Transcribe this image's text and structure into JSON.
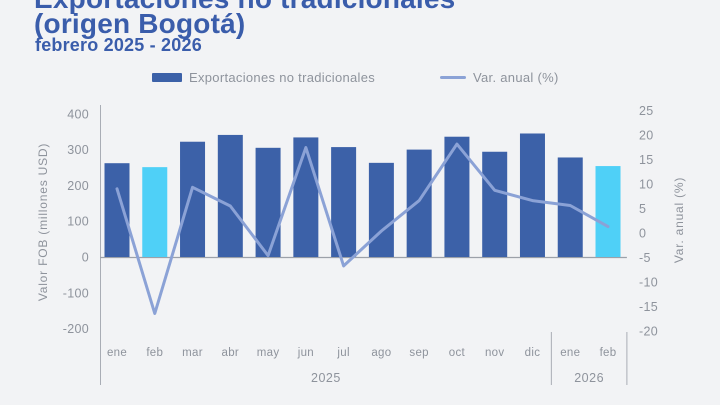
{
  "header": {
    "title_line1": "Exportaciones no tradicionales",
    "title_line2": "(origen Bogotá)",
    "subtitle": "febrero 2025 - 2026"
  },
  "legend": {
    "bars_label": "Exportaciones no tradicionales",
    "line_label": "Var. anual (%)"
  },
  "chart_data": {
    "type": "bar+line",
    "title": "Exportaciones no tradicionales (origen Bogotá)",
    "categories": [
      "ene",
      "feb",
      "mar",
      "abr",
      "may",
      "jun",
      "jul",
      "ago",
      "sep",
      "oct",
      "nov",
      "dic",
      "ene",
      "feb"
    ],
    "year_groups": [
      {
        "label": "2025",
        "months": 12
      },
      {
        "label": "2026",
        "months": 2
      }
    ],
    "series": [
      {
        "name": "Exportaciones no tradicionales",
        "type": "bar",
        "axis": "left",
        "values": [
          262,
          251,
          322,
          341,
          305,
          334,
          307,
          263,
          300,
          336,
          294,
          345,
          278,
          254
        ],
        "highlight_indices": [
          1,
          13
        ]
      },
      {
        "name": "Var. anual (%)",
        "type": "line",
        "axis": "right",
        "values": [
          9,
          -16.4,
          9.3,
          5.5,
          -4.6,
          17.4,
          -6.7,
          0.4,
          6.6,
          18.1,
          8.7,
          6.6,
          5.6,
          1.3
        ]
      }
    ],
    "left_axis": {
      "label": "Valor FOB (millones USD)",
      "ticks": [
        400,
        300,
        200,
        100,
        0,
        -100,
        -200
      ],
      "range": [
        -200,
        400
      ]
    },
    "right_axis": {
      "label": "Var. anual (%)",
      "ticks": [
        25,
        20,
        15,
        10,
        5,
        0,
        -5,
        -10,
        -15,
        -20
      ],
      "range": [
        -20,
        25
      ]
    },
    "grid": "off",
    "legend_position": "top",
    "colors": {
      "bar": "#3c61a8",
      "bar_highlight": "#4fd0f7",
      "line": "#8ba2d6",
      "title": "#3a5dab",
      "text": "#8e939c",
      "axis": "#a9adb5",
      "background": "#f2f3f5"
    }
  }
}
